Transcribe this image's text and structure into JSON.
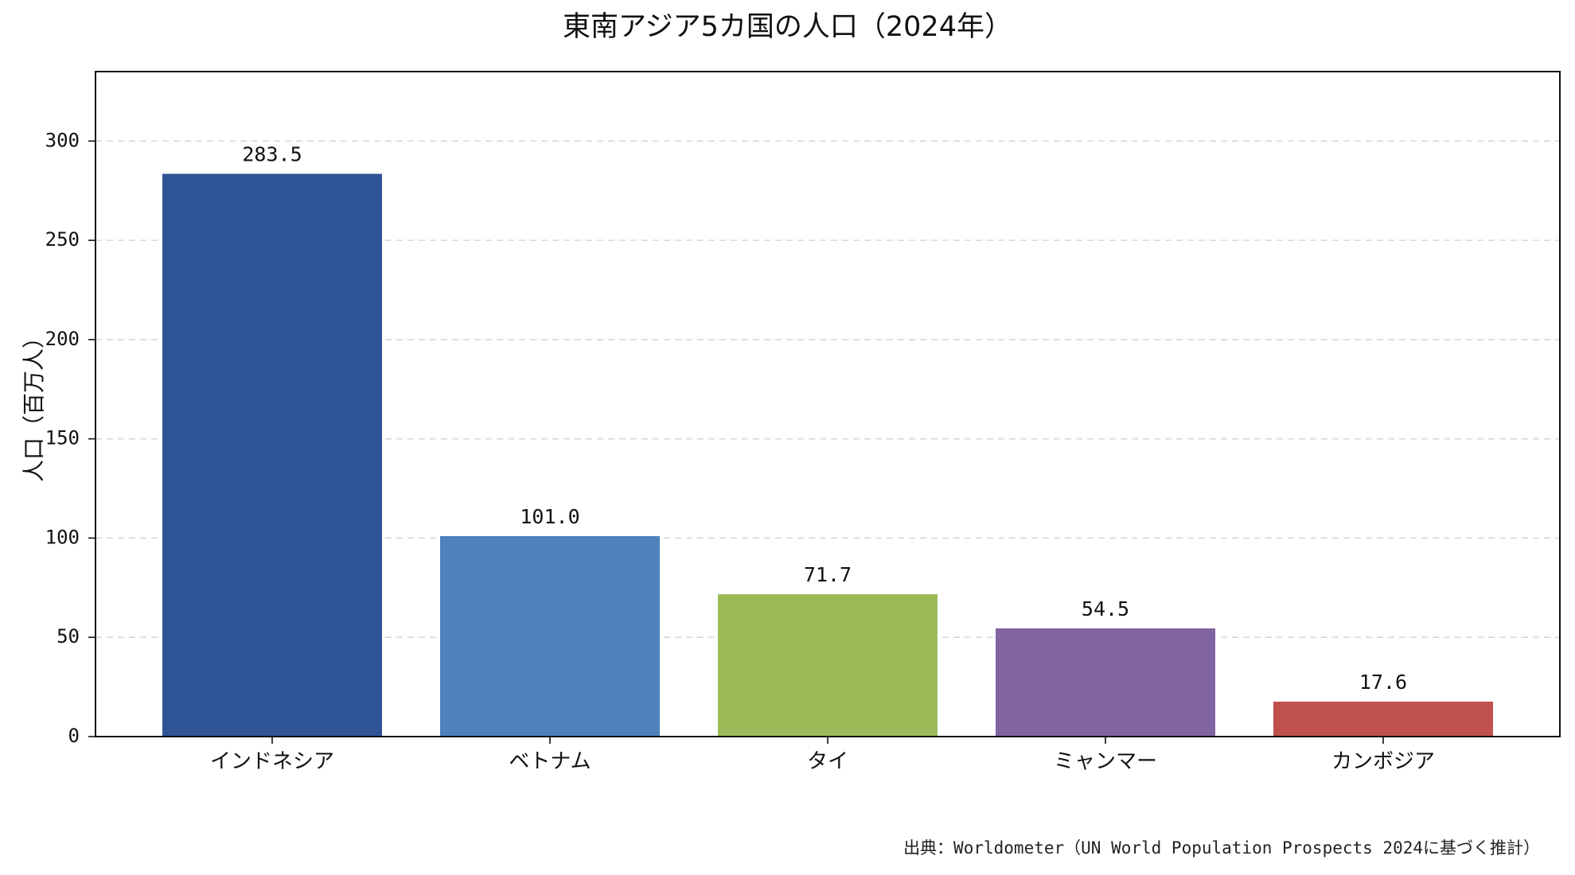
{
  "chart_data": {
    "type": "bar",
    "title": "東南アジア5カ国の人口（2024年）",
    "xlabel": "",
    "ylabel": "人口（百万人）",
    "ylim": [
      0,
      335
    ],
    "yticks": [
      0,
      50,
      100,
      150,
      200,
      250,
      300
    ],
    "categories": [
      "インドネシア",
      "ベトナム",
      "タイ",
      "ミャンマー",
      "カンボジア"
    ],
    "values": [
      283.5,
      101.0,
      71.7,
      54.5,
      17.6
    ],
    "value_labels": [
      "283.5",
      "101.0",
      "71.7",
      "54.5",
      "17.6"
    ],
    "colors": [
      "#2F5597",
      "#4F81BD",
      "#9BBB59",
      "#8064A2",
      "#C0504D"
    ],
    "grid": "horizontal dashed",
    "legend": "none"
  },
  "source_note": "出典：Worldometer（UN World Population Prospects 2024に基づく推計）"
}
